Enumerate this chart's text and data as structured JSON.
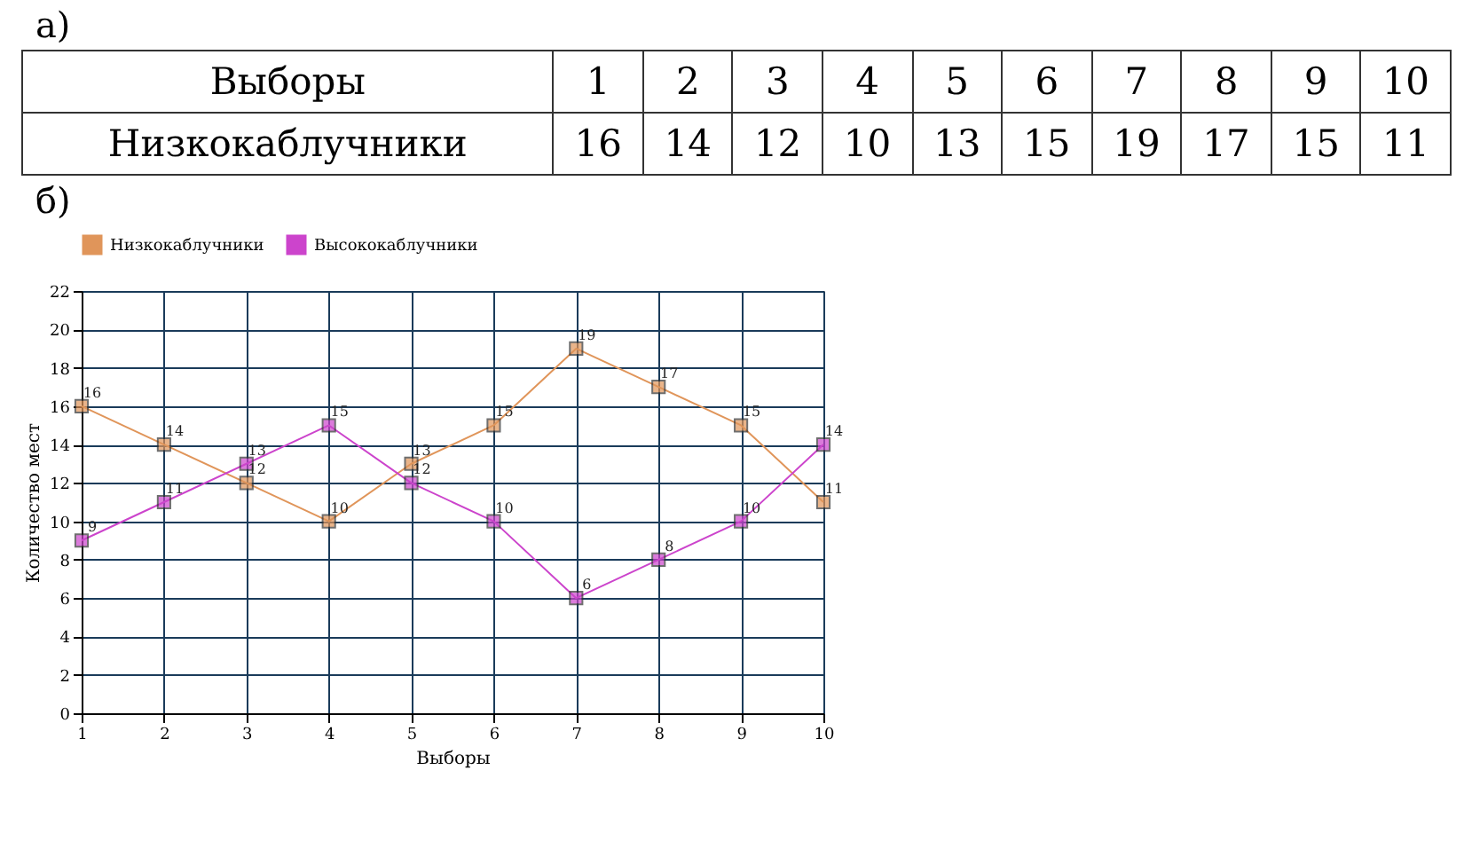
{
  "chart_data": [
    {
      "type": "heatmap",
      "title": "а)",
      "xlabel": "Выборы",
      "categories": [
        "1",
        "2",
        "3",
        "4",
        "5",
        "6",
        "7",
        "8",
        "9",
        "10"
      ],
      "y_categories": [
        "Низкокаблучники"
      ],
      "cells": [
        [
          16,
          14,
          12,
          10,
          13,
          15,
          19,
          17,
          15,
          11
        ]
      ],
      "data_labels": true
    },
    {
      "type": "line",
      "title": "б)",
      "xlabel": "Выборы",
      "ylabel": "Количество мест",
      "categories": [
        "1",
        "2",
        "3",
        "4",
        "5",
        "6",
        "7",
        "8",
        "9",
        "10"
      ],
      "ylim": [
        0,
        22
      ],
      "yticks": [
        0,
        2,
        4,
        6,
        8,
        10,
        12,
        14,
        16,
        18,
        20,
        22
      ],
      "series": [
        {
          "name": "Низкокаблучники",
          "color": "#e0955a",
          "values": [
            16,
            14,
            12,
            10,
            13,
            15,
            19,
            17,
            15,
            11
          ]
        },
        {
          "name": "Высококаблучники",
          "color": "#cc44cc",
          "values": [
            9,
            11,
            13,
            15,
            12,
            10,
            6,
            8,
            10,
            14
          ]
        }
      ],
      "grid": true,
      "legend": "top left",
      "marker": "square",
      "line_style": "solid",
      "data_labels": true
    }
  ]
}
